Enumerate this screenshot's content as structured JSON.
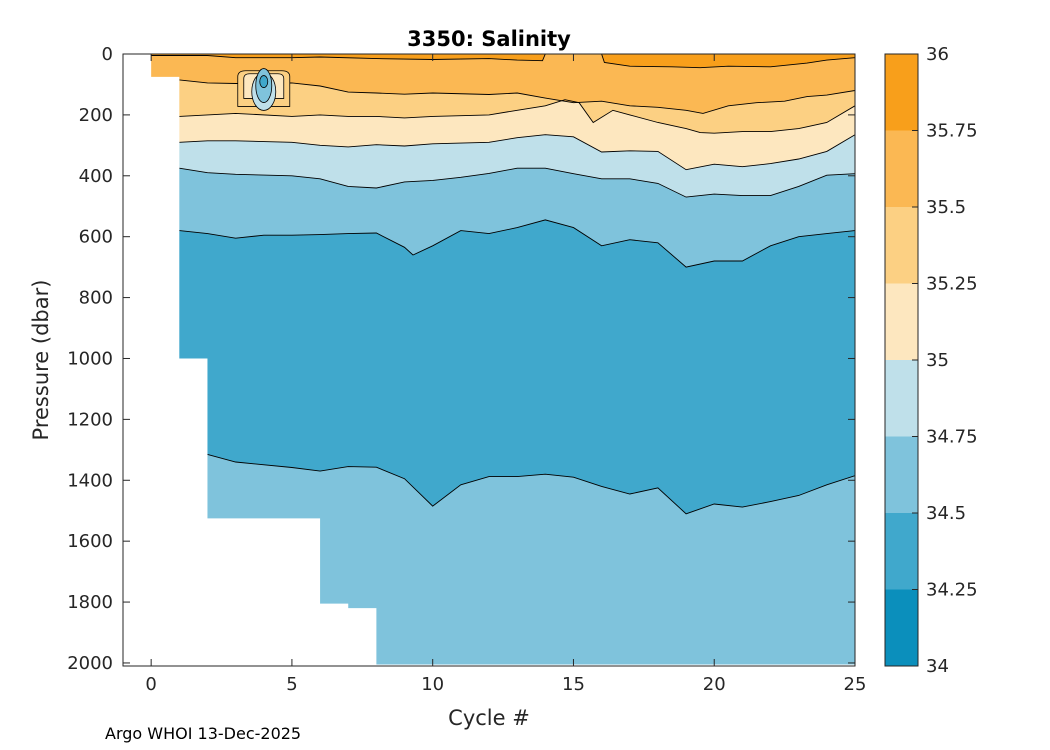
{
  "chart_data": {
    "type": "filled-contour",
    "title": "3350:  Salinity",
    "xlabel": "Cycle #",
    "ylabel": "Pressure (dbar)",
    "xlim": [
      -1,
      25
    ],
    "ylim": [
      2010,
      0
    ],
    "xticks": [
      0,
      5,
      10,
      15,
      20,
      25
    ],
    "yticks": [
      0,
      200,
      400,
      600,
      800,
      1000,
      1200,
      1400,
      1600,
      1800,
      2000
    ],
    "colorbar": {
      "levels": [
        34,
        34.25,
        34.5,
        34.75,
        35,
        35.25,
        35.5,
        35.75,
        36
      ],
      "tick_labels": [
        "34",
        "34.25",
        "34.5",
        "34.75",
        "35",
        "35.25",
        "35.5",
        "35.75",
        "36"
      ],
      "colors": [
        "#0b8fbc",
        "#40a8cc",
        "#7fc3dc",
        "#bfe0ea",
        "#fde7bf",
        "#fcd083",
        "#fbb853",
        "#f89f1b"
      ]
    },
    "profile_depth": [
      {
        "cycle": 0,
        "max_pressure": 75
      },
      {
        "cycle": 1,
        "max_pressure": 1000
      },
      {
        "cycle": 2,
        "max_pressure": 1525
      },
      {
        "cycle": 6,
        "max_pressure": 1805
      },
      {
        "cycle": 7,
        "max_pressure": 1820
      },
      {
        "cycle": 8,
        "max_pressure": 2005
      },
      {
        "cycle": 25,
        "max_pressure": 2005
      }
    ],
    "contours": [
      {
        "level": 35.5,
        "points": [
          [
            0,
            5
          ],
          [
            2,
            5
          ],
          [
            3,
            12
          ],
          [
            5,
            12
          ],
          [
            6,
            10
          ],
          [
            8,
            15
          ],
          [
            10,
            18
          ],
          [
            12,
            15
          ],
          [
            13,
            20
          ],
          [
            13.9,
            22
          ],
          [
            14,
            0
          ],
          [
            16,
            0
          ],
          [
            16.1,
            28
          ],
          [
            17,
            40
          ],
          [
            18.5,
            42
          ],
          [
            19.5,
            45
          ],
          [
            20.5,
            40
          ],
          [
            22,
            42
          ],
          [
            23.3,
            30
          ],
          [
            24,
            20
          ],
          [
            25,
            12
          ]
        ]
      },
      {
        "level": 35.25,
        "points": [
          [
            1,
            85
          ],
          [
            2,
            95
          ],
          [
            3,
            97
          ],
          [
            5,
            95
          ],
          [
            6,
            105
          ],
          [
            7,
            125
          ],
          [
            8,
            128
          ],
          [
            9,
            132
          ],
          [
            10,
            128
          ],
          [
            12,
            133
          ],
          [
            13,
            128
          ],
          [
            14,
            145
          ],
          [
            15,
            160
          ],
          [
            16,
            155
          ],
          [
            17,
            170
          ],
          [
            18,
            175
          ],
          [
            19,
            185
          ],
          [
            19.6,
            195
          ],
          [
            20.5,
            170
          ],
          [
            21.5,
            160
          ],
          [
            22.5,
            155
          ],
          [
            23.3,
            140
          ],
          [
            24,
            135
          ],
          [
            25,
            120
          ]
        ]
      },
      {
        "level": 35.0,
        "points": [
          [
            1,
            205
          ],
          [
            2,
            200
          ],
          [
            3,
            195
          ],
          [
            5,
            205
          ],
          [
            6,
            200
          ],
          [
            7,
            205
          ],
          [
            8,
            205
          ],
          [
            9,
            210
          ],
          [
            10,
            205
          ],
          [
            12,
            200
          ],
          [
            13,
            185
          ],
          [
            14,
            170
          ],
          [
            14.7,
            150
          ],
          [
            15.2,
            160
          ],
          [
            15.7,
            225
          ],
          [
            16.4,
            185
          ],
          [
            17,
            200
          ],
          [
            18,
            225
          ],
          [
            19,
            245
          ],
          [
            19.5,
            258
          ],
          [
            20,
            260
          ],
          [
            21,
            255
          ],
          [
            22,
            255
          ],
          [
            23,
            245
          ],
          [
            24,
            225
          ],
          [
            25,
            170
          ]
        ]
      },
      {
        "level": 34.75,
        "points": [
          [
            1,
            290
          ],
          [
            2,
            285
          ],
          [
            3,
            285
          ],
          [
            5,
            290
          ],
          [
            6,
            300
          ],
          [
            7,
            305
          ],
          [
            8,
            298
          ],
          [
            9,
            302
          ],
          [
            10,
            295
          ],
          [
            12,
            290
          ],
          [
            13,
            275
          ],
          [
            14,
            265
          ],
          [
            15,
            272
          ],
          [
            16,
            322
          ],
          [
            17,
            318
          ],
          [
            18,
            320
          ],
          [
            19,
            380
          ],
          [
            20,
            362
          ],
          [
            21,
            370
          ],
          [
            22,
            360
          ],
          [
            23,
            345
          ],
          [
            24,
            320
          ],
          [
            25,
            265
          ]
        ]
      },
      {
        "level": 34.5,
        "points": [
          [
            1,
            375
          ],
          [
            2,
            390
          ],
          [
            3,
            395
          ],
          [
            5,
            400
          ],
          [
            6,
            410
          ],
          [
            7,
            435
          ],
          [
            8,
            440
          ],
          [
            9,
            420
          ],
          [
            10,
            415
          ],
          [
            11,
            405
          ],
          [
            12,
            392
          ],
          [
            13,
            375
          ],
          [
            14,
            375
          ],
          [
            15,
            393
          ],
          [
            16,
            410
          ],
          [
            17,
            410
          ],
          [
            18,
            425
          ],
          [
            19,
            470
          ],
          [
            20,
            460
          ],
          [
            21,
            465
          ],
          [
            22,
            465
          ],
          [
            23,
            435
          ],
          [
            24,
            398
          ],
          [
            25,
            393
          ]
        ]
      },
      {
        "level": 34.25,
        "points": [
          [
            1,
            580
          ],
          [
            2,
            590
          ],
          [
            3,
            605
          ],
          [
            4,
            595
          ],
          [
            5,
            595
          ],
          [
            6,
            593
          ],
          [
            7,
            590
          ],
          [
            8,
            588
          ],
          [
            9,
            635
          ],
          [
            9.3,
            660
          ],
          [
            10,
            630
          ],
          [
            11,
            580
          ],
          [
            12,
            590
          ],
          [
            13,
            570
          ],
          [
            14,
            545
          ],
          [
            15,
            570
          ],
          [
            16,
            630
          ],
          [
            17,
            610
          ],
          [
            18,
            620
          ],
          [
            19,
            700
          ],
          [
            20,
            680
          ],
          [
            21,
            680
          ],
          [
            22,
            630
          ],
          [
            23,
            600
          ],
          [
            24,
            590
          ],
          [
            25,
            580
          ]
        ]
      },
      {
        "level": 34.5,
        "points": [
          [
            2,
            1315
          ],
          [
            3,
            1340
          ],
          [
            5,
            1358
          ],
          [
            6,
            1370
          ],
          [
            7,
            1355
          ],
          [
            8,
            1357
          ],
          [
            9,
            1395
          ],
          [
            10,
            1485
          ],
          [
            11,
            1415
          ],
          [
            12,
            1388
          ],
          [
            13,
            1388
          ],
          [
            14,
            1380
          ],
          [
            15,
            1390
          ],
          [
            16,
            1420
          ],
          [
            17,
            1445
          ],
          [
            18,
            1425
          ],
          [
            19,
            1510
          ],
          [
            20,
            1478
          ],
          [
            21,
            1488
          ],
          [
            22,
            1470
          ],
          [
            23,
            1450
          ],
          [
            24,
            1415
          ],
          [
            25,
            1385
          ]
        ]
      }
    ],
    "anomaly": {
      "cycle": 4,
      "pressure_top": 55,
      "pressure_bottom": 205,
      "min_value": 34.25
    },
    "footer": "Argo WHOI 13-Dec-2025"
  }
}
